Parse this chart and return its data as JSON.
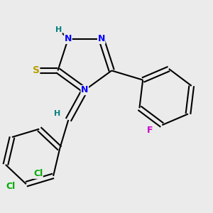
{
  "background_color": "#ebebeb",
  "atom_colors": {
    "N": "#0000ff",
    "S": "#b8a000",
    "F": "#cc00cc",
    "Cl": "#00aa00",
    "C": "#000000",
    "H": "#008080"
  },
  "bond_color": "#000000",
  "bond_width": 1.5
}
